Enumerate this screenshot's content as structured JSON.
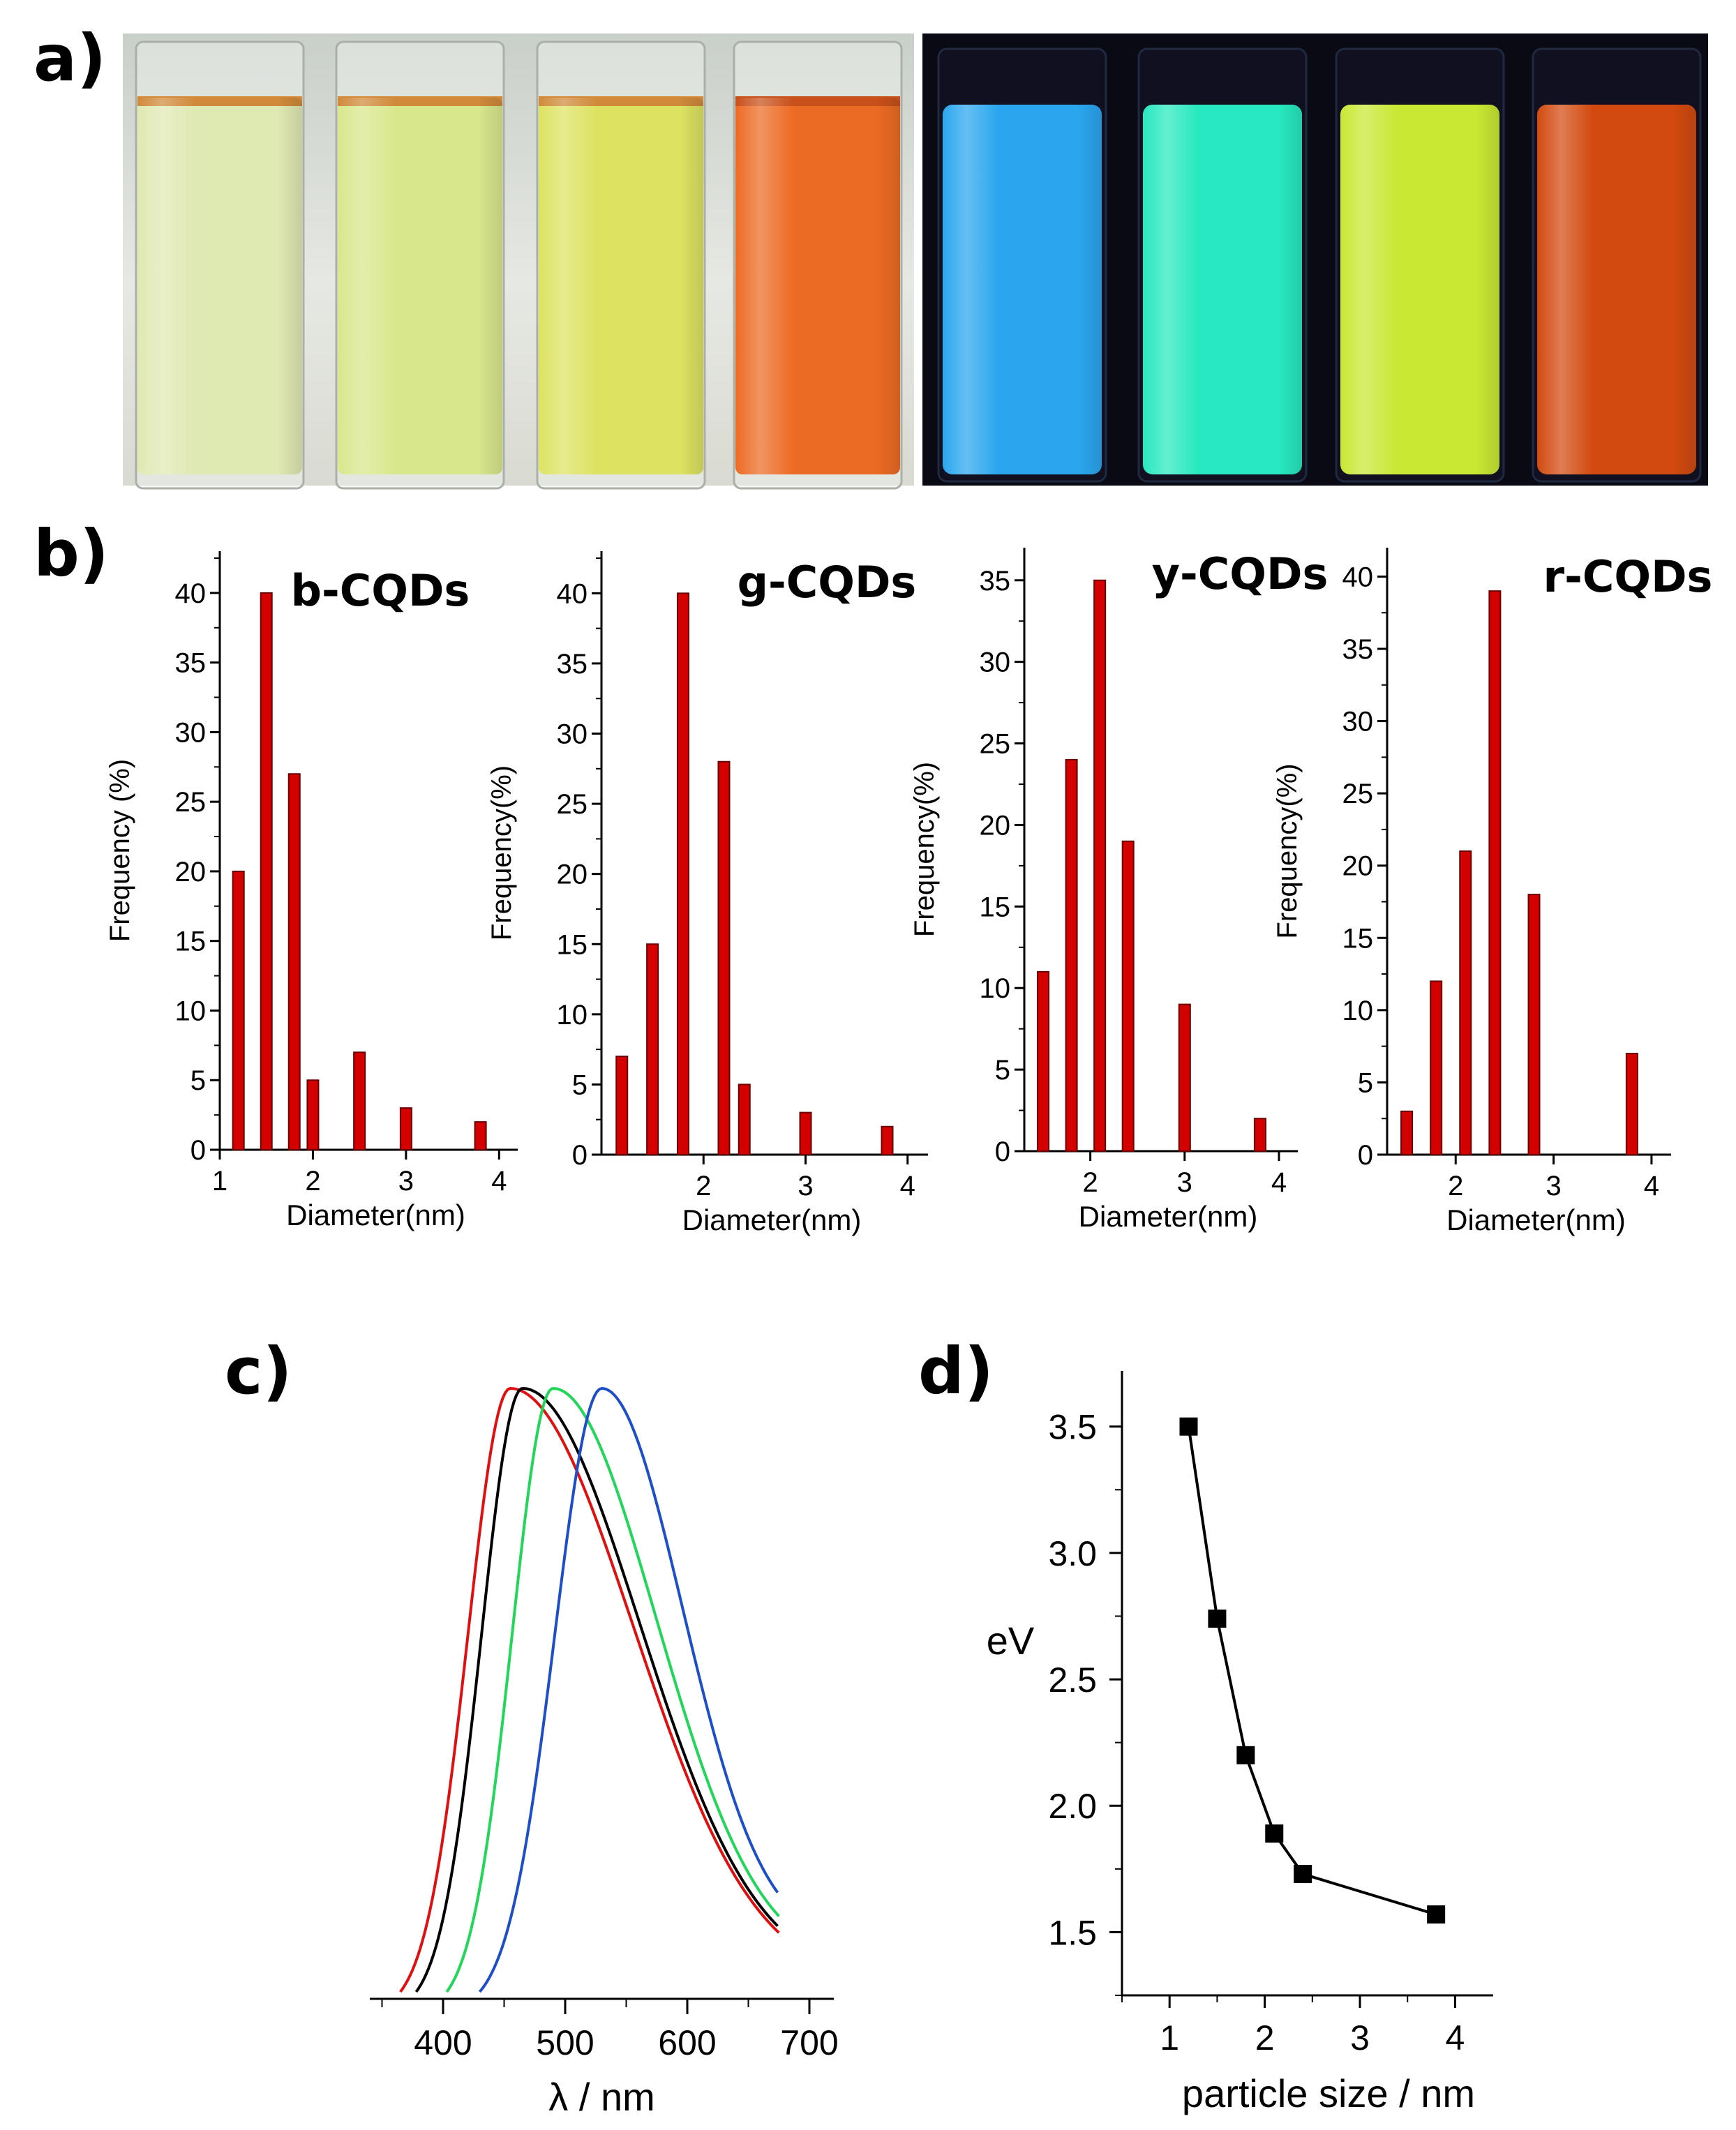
{
  "panel_labels": {
    "a": "a)",
    "b": "b)",
    "c": "c)",
    "d": "d)"
  },
  "colors": {
    "bar_fill": "#d40000",
    "bar_stroke": "#6b0000",
    "ambient_vials": [
      "#dfe9b2",
      "#d9e78c",
      "#dde361",
      "#ec6b24"
    ],
    "uv_vials": [
      "#2aa6ef",
      "#27e8c0",
      "#c9e834",
      "#d24a10"
    ],
    "spectra": [
      "#e01010",
      "#000000",
      "#22d65a",
      "#1e4fc8"
    ]
  },
  "chart_data": [
    {
      "id": "b-CQDs",
      "type": "bar",
      "title": "b-CQDs",
      "xlabel": "Diameter(nm)",
      "ylabel": "Frequency (%)",
      "xlim": [
        1,
        4.2
      ],
      "ylim": [
        0,
        43
      ],
      "xticks": [
        "1",
        "2",
        "3",
        "4"
      ],
      "xtick_values": [
        1,
        2,
        3,
        4
      ],
      "yticks": [
        "0",
        "5",
        "10",
        "15",
        "20",
        "25",
        "30",
        "35",
        "40"
      ],
      "x": [
        1.2,
        1.5,
        1.8,
        2.0,
        2.5,
        3.0,
        3.8
      ],
      "values": [
        20,
        40,
        27,
        5,
        7,
        3,
        2
      ]
    },
    {
      "id": "g-CQDs",
      "type": "bar",
      "title": "g-CQDs",
      "xlabel": "Diameter(nm)",
      "ylabel": "Frequency(%)",
      "xlim": [
        1,
        4.2
      ],
      "ylim": [
        0,
        43
      ],
      "xticks": [
        "2",
        "3",
        "4"
      ],
      "xtick_values": [
        2,
        3,
        4
      ],
      "yticks": [
        "0",
        "5",
        "10",
        "15",
        "20",
        "25",
        "30",
        "35",
        "40"
      ],
      "x": [
        1.2,
        1.5,
        1.8,
        2.2,
        2.4,
        3.0,
        3.8
      ],
      "values": [
        7,
        15,
        40,
        28,
        5,
        3,
        2
      ]
    },
    {
      "id": "y-CQDs",
      "type": "bar",
      "title": "y-CQDs",
      "xlabel": "Diameter(nm)",
      "ylabel": "Frequency(%)",
      "xlim": [
        1.3,
        4.2
      ],
      "ylim": [
        0,
        37
      ],
      "xticks": [
        "2",
        "3",
        "4"
      ],
      "xtick_values": [
        2,
        3,
        4
      ],
      "yticks": [
        "0",
        "5",
        "10",
        "15",
        "20",
        "25",
        "30",
        "35"
      ],
      "x": [
        1.5,
        1.8,
        2.1,
        2.4,
        3.0,
        3.8
      ],
      "values": [
        11,
        24,
        35,
        19,
        9,
        2
      ]
    },
    {
      "id": "r-CQDs",
      "type": "bar",
      "title": "r-CQDs",
      "xlabel": "Diameter(nm)",
      "ylabel": "Frequency(%)",
      "xlim": [
        1.3,
        4.2
      ],
      "ylim": [
        0,
        42
      ],
      "xticks": [
        "2",
        "3",
        "4"
      ],
      "xtick_values": [
        2,
        3,
        4
      ],
      "yticks": [
        "0",
        "5",
        "10",
        "15",
        "20",
        "25",
        "30",
        "35",
        "40"
      ],
      "x": [
        1.5,
        1.8,
        2.1,
        2.4,
        2.8,
        3.8
      ],
      "values": [
        3,
        12,
        21,
        39,
        18,
        7
      ]
    },
    {
      "id": "spectra",
      "type": "line",
      "xlabel": "λ / nm",
      "ylabel": "",
      "xlim": [
        340,
        720
      ],
      "ylim": [
        0,
        1
      ],
      "xticks": [
        "400",
        "500",
        "600",
        "700"
      ],
      "xtick_values": [
        400,
        500,
        600,
        700
      ],
      "series": [
        {
          "name": "red",
          "peak": 455,
          "start": 365,
          "end": 675,
          "end_value": 0.01
        },
        {
          "name": "black",
          "peak": 465,
          "start": 378,
          "end": 675,
          "end_value": 0.02
        },
        {
          "name": "green",
          "peak": 490,
          "start": 403,
          "end": 675,
          "end_value": 0.04
        },
        {
          "name": "blue",
          "peak": 530,
          "start": 430,
          "end": 675,
          "end_value": 0.08
        }
      ]
    },
    {
      "id": "energy",
      "type": "line",
      "xlabel": "particle size / nm",
      "ylabel": "eV",
      "xlim": [
        0.5,
        4.4
      ],
      "ylim": [
        1.25,
        3.72
      ],
      "xticks": [
        "1",
        "2",
        "3",
        "4"
      ],
      "xtick_values": [
        1,
        2,
        3,
        4
      ],
      "yticks": [
        "1.5",
        "2.0",
        "2.5",
        "3.0",
        "3.5"
      ],
      "ytick_values": [
        1.5,
        2.0,
        2.5,
        3.0,
        3.5
      ],
      "x": [
        1.2,
        1.5,
        1.8,
        2.1,
        2.4,
        3.8
      ],
      "values": [
        3.5,
        2.74,
        2.2,
        1.89,
        1.73,
        1.57
      ]
    }
  ]
}
